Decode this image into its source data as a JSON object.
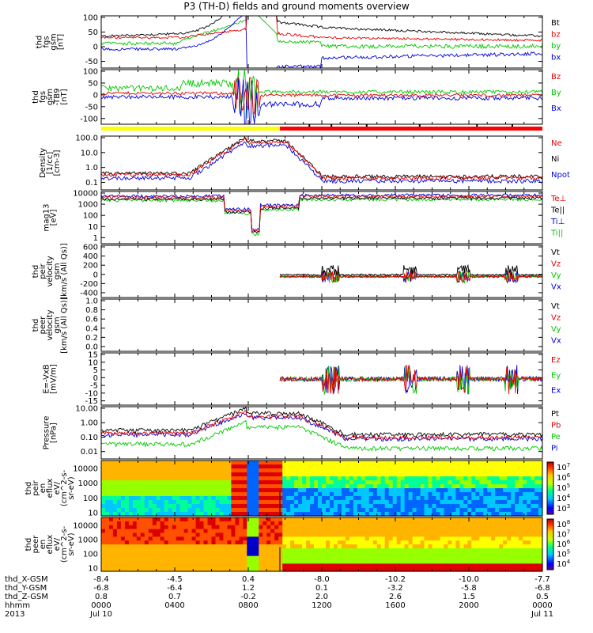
{
  "title": "P3 (TH-D) fields and ground moments overview",
  "colors": {
    "black": "#000000",
    "red": "#e00000",
    "green": "#00c800",
    "blue": "#0000d8",
    "yellow": "#ffff00",
    "bar_red": "#ff0000"
  },
  "chart_data": [
    {
      "type": "line",
      "id": "fgs",
      "ylabel": [
        "thd",
        "fgs",
        "gsm",
        "[nT]"
      ],
      "yticks": [
        "100",
        "50",
        "0",
        "-50"
      ],
      "ylim": [
        -80,
        100
      ],
      "legend": [
        {
          "label": "Bt",
          "color": "#000000"
        },
        {
          "label": "bz",
          "color": "#e00000"
        },
        {
          "label": "by",
          "color": "#00c800"
        },
        {
          "label": "bx",
          "color": "#0000d8"
        }
      ]
    },
    {
      "type": "line",
      "id": "fgs_bar",
      "ylabel": [
        "thd",
        "fgs",
        "gsm",
        "-TB9",
        "[nT]"
      ],
      "yticks": [
        "100",
        "50",
        "0",
        "-50",
        "-100"
      ],
      "ylim": [
        -120,
        100
      ],
      "legend": [
        {
          "label": "Bz",
          "color": "#e00000"
        },
        {
          "label": "By",
          "color": "#00c800"
        },
        {
          "label": "Bx",
          "color": "#0000d8"
        }
      ]
    },
    {
      "type": "line",
      "id": "density",
      "ylabel": [
        "Density",
        "[1/cc]",
        "[cm-3]"
      ],
      "yticks": [
        "100.0",
        "10.0",
        "1.0",
        "0.1"
      ],
      "ylim": [
        0.05,
        200
      ],
      "log": true,
      "legend": [
        {
          "label": "Ne",
          "color": "#e00000"
        },
        {
          "label": "Ni",
          "color": "#000000"
        },
        {
          "label": "Npot",
          "color": "#0000d8"
        }
      ]
    },
    {
      "type": "line",
      "id": "temp",
      "ylabel": [
        "mag13",
        "[eV]"
      ],
      "yticks": [
        "10000",
        "1000",
        "100",
        "10",
        "1"
      ],
      "ylim": [
        1,
        10000
      ],
      "log": true,
      "legend": [
        {
          "label": "Te⊥",
          "color": "#e00000"
        },
        {
          "label": "Te||",
          "color": "#000000"
        },
        {
          "label": "Ti⊥",
          "color": "#0000d8"
        },
        {
          "label": "Ti||",
          "color": "#00c800"
        }
      ]
    },
    {
      "type": "line",
      "id": "peir_vel",
      "ylabel": [
        "thd",
        "peir",
        "velocity",
        "gsm",
        "[km/s (All Qs)]"
      ],
      "yticks": [
        "600",
        "400",
        "200",
        "0",
        "-200",
        "-400"
      ],
      "ylim": [
        -400,
        600
      ],
      "legend": [
        {
          "label": "Vt",
          "color": "#000000"
        },
        {
          "label": "Vz",
          "color": "#e00000"
        },
        {
          "label": "Vy",
          "color": "#00c800"
        },
        {
          "label": "Vx",
          "color": "#0000d8"
        }
      ]
    },
    {
      "type": "line",
      "id": "peer_vel",
      "ylabel": [
        "thd",
        "peer",
        "velocity",
        "gsm",
        "[km/s (All Qs)]"
      ],
      "yticks": [
        "1.0",
        "0.8",
        "0.6",
        "0.4",
        "0.2",
        "0.0"
      ],
      "ylim": [
        0,
        1
      ],
      "legend": [
        {
          "label": "Vt",
          "color": "#000000"
        },
        {
          "label": "Vz",
          "color": "#e00000"
        },
        {
          "label": "Vy",
          "color": "#00c800"
        },
        {
          "label": "Vx",
          "color": "#0000d8"
        }
      ]
    },
    {
      "type": "line",
      "id": "efield",
      "ylabel": [
        "E=-VxB",
        "[mV/m]"
      ],
      "yticks": [
        "15",
        "10",
        "5",
        "0",
        "-5",
        "-10",
        "-15"
      ],
      "ylim": [
        -17,
        17
      ],
      "legend": [
        {
          "label": "Ez",
          "color": "#e00000"
        },
        {
          "label": "Ey",
          "color": "#00c800"
        },
        {
          "label": "Ex",
          "color": "#0000d8"
        }
      ]
    },
    {
      "type": "line",
      "id": "pressure",
      "ylabel": [
        "Pressure",
        "[nPa]"
      ],
      "yticks": [
        "10.00",
        "1.00",
        "0.10",
        "0.01"
      ],
      "ylim": [
        0.005,
        30
      ],
      "log": true,
      "legend": [
        {
          "label": "Pt",
          "color": "#000000"
        },
        {
          "label": "Pb",
          "color": "#e00000"
        },
        {
          "label": "Pe",
          "color": "#00c800"
        },
        {
          "label": "Pi",
          "color": "#0000d8"
        }
      ]
    },
    {
      "type": "heatmap",
      "id": "peir_spec",
      "ylabel": [
        "thd",
        "peir",
        "en",
        "eflux",
        "eV/",
        "(cm^2-s-",
        "sr-eV)"
      ],
      "yticks": [
        "10000",
        "1000",
        "100",
        "10"
      ],
      "colorbar": [
        "10^7",
        "10^6",
        "10^5",
        "10^4",
        "10^3"
      ]
    },
    {
      "type": "heatmap",
      "id": "peer_spec",
      "ylabel": [
        "thd",
        "peer",
        "en",
        "eflux",
        "eV/",
        "(cm^2-s-",
        "sr-eV)"
      ],
      "yticks": [
        "10000",
        "1000",
        "100",
        "10"
      ],
      "colorbar": [
        "10^8",
        "10^7",
        "10^6",
        "10^5",
        "10^4"
      ]
    }
  ],
  "xaxis": {
    "row_labels": [
      "thd_X-GSM",
      "thd_Y-GSM",
      "thd_Z-GSM",
      "hhmm",
      "2013"
    ],
    "columns": [
      {
        "x": "-8.4",
        "y": "-6.8",
        "z": "0.8",
        "hhmm": "0000",
        "date": "Jul 10"
      },
      {
        "x": "-4.5",
        "y": "-6.4",
        "z": "0.7",
        "hhmm": "0400",
        "date": ""
      },
      {
        "x": "0.4",
        "y": "1.2",
        "z": "-0.2",
        "hhmm": "0800",
        "date": ""
      },
      {
        "x": "-8.0",
        "y": "0.1",
        "z": "2.0",
        "hhmm": "1200",
        "date": ""
      },
      {
        "x": "-10.2",
        "y": "-3.2",
        "z": "2.6",
        "hhmm": "1600",
        "date": ""
      },
      {
        "x": "-10.0",
        "y": "-5.8",
        "z": "1.5",
        "hhmm": "2000",
        "date": ""
      },
      {
        "x": "-7.7",
        "y": "-6.8",
        "z": "0.5",
        "hhmm": "0000",
        "date": "Jul 11"
      }
    ]
  }
}
